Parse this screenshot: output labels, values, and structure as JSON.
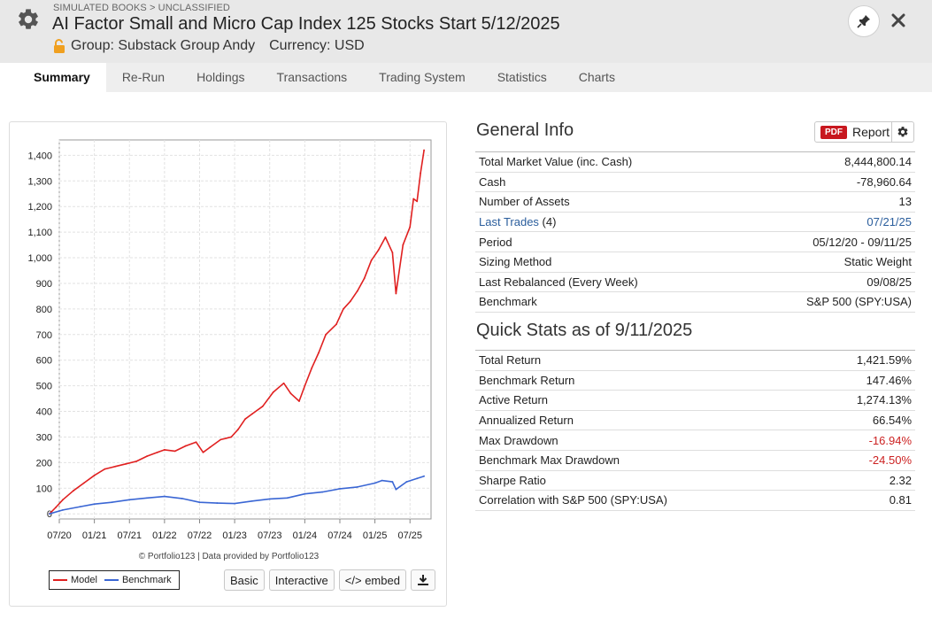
{
  "header": {
    "breadcrumb": "SIMULATED BOOKS > UNCLASSIFIED",
    "title": "AI Factor Small and Micro Cap Index 125 Stocks Start 5/12/2025",
    "group": "Group: Substack Group Andy",
    "currency": "Currency: USD"
  },
  "tabs": [
    {
      "label": "Summary",
      "active": true
    },
    {
      "label": "Re-Run"
    },
    {
      "label": "Holdings"
    },
    {
      "label": "Transactions"
    },
    {
      "label": "Trading System"
    },
    {
      "label": "Statistics"
    },
    {
      "label": "Charts"
    }
  ],
  "chart": {
    "credit": "© Portfolio123 | Data provided by Portfolio123",
    "legend": {
      "model": "Model",
      "benchmark": "Benchmark"
    },
    "buttons": {
      "basic": "Basic",
      "interactive": "Interactive",
      "embed": "</> embed"
    }
  },
  "chart_data": {
    "type": "line",
    "ylim": [
      -20,
      1460
    ],
    "yticks": [
      0,
      100,
      200,
      300,
      400,
      500,
      600,
      700,
      800,
      900,
      1000,
      1100,
      1200,
      1300,
      1400
    ],
    "ytick_labels": [
      "0",
      "100",
      "200",
      "300",
      "400",
      "500",
      "600",
      "700",
      "800",
      "900",
      "1,000",
      "1,100",
      "1,200",
      "1,300",
      "1,400"
    ],
    "xlim": [
      2020.5,
      2025.8
    ],
    "xticks": [
      2020.5,
      2021.0,
      2021.5,
      2022.0,
      2022.5,
      2023.0,
      2023.5,
      2024.0,
      2024.5,
      2025.0,
      2025.5
    ],
    "xtick_labels": [
      "07/20",
      "01/21",
      "07/21",
      "01/22",
      "07/22",
      "01/23",
      "07/23",
      "01/24",
      "07/24",
      "01/25",
      "07/25"
    ],
    "series": [
      {
        "name": "Model",
        "color": "#e02020",
        "x": [
          2020.36,
          2020.45,
          2020.55,
          2020.7,
          2020.85,
          2021.0,
          2021.15,
          2021.3,
          2021.45,
          2021.6,
          2021.75,
          2021.9,
          2022.0,
          2022.15,
          2022.3,
          2022.45,
          2022.55,
          2022.65,
          2022.8,
          2022.95,
          2023.05,
          2023.15,
          2023.25,
          2023.4,
          2023.55,
          2023.7,
          2023.8,
          2023.92,
          2024.0,
          2024.1,
          2024.2,
          2024.3,
          2024.45,
          2024.55,
          2024.65,
          2024.75,
          2024.85,
          2024.95,
          2025.05,
          2025.15,
          2025.25,
          2025.3,
          2025.4,
          2025.5,
          2025.55,
          2025.6,
          2025.65,
          2025.7
        ],
        "values": [
          0,
          25,
          55,
          90,
          120,
          150,
          175,
          185,
          195,
          205,
          225,
          240,
          250,
          245,
          265,
          280,
          240,
          260,
          290,
          300,
          330,
          370,
          390,
          420,
          475,
          510,
          470,
          440,
          500,
          570,
          630,
          700,
          740,
          800,
          830,
          870,
          920,
          990,
          1030,
          1080,
          1020,
          860,
          1050,
          1120,
          1230,
          1220,
          1330,
          1420
        ]
      },
      {
        "name": "Benchmark",
        "color": "#3a66d4",
        "x": [
          2020.36,
          2020.55,
          2020.8,
          2021.0,
          2021.25,
          2021.5,
          2021.75,
          2022.0,
          2022.25,
          2022.5,
          2022.75,
          2023.0,
          2023.25,
          2023.5,
          2023.75,
          2024.0,
          2024.25,
          2024.5,
          2024.75,
          2025.0,
          2025.1,
          2025.25,
          2025.3,
          2025.45,
          2025.6,
          2025.7
        ],
        "values": [
          0,
          15,
          28,
          38,
          45,
          55,
          62,
          68,
          60,
          45,
          42,
          40,
          50,
          58,
          62,
          78,
          85,
          98,
          105,
          120,
          130,
          125,
          95,
          125,
          138,
          147
        ]
      }
    ]
  },
  "general_info": {
    "title": "General Info",
    "report_label": "Report",
    "pdf_label": "PDF",
    "rows": [
      {
        "label": "Total Market Value (inc. Cash)",
        "value": "8,444,800.14"
      },
      {
        "label": "Cash",
        "value": "-78,960.64"
      },
      {
        "label": "Number of Assets",
        "value": "13"
      },
      {
        "label_link": "Last Trades",
        "label_suffix": " (4)",
        "value": "07/21/25",
        "value_link": true
      },
      {
        "label": "Period",
        "value": "05/12/20 - 09/11/25"
      },
      {
        "label": "Sizing Method",
        "value": "Static Weight"
      },
      {
        "label": "Last Rebalanced (Every Week)",
        "value": "09/08/25"
      },
      {
        "label": "Benchmark",
        "value": "S&P 500 (SPY:USA)"
      }
    ]
  },
  "quick_stats": {
    "title": "Quick Stats as of 9/11/2025",
    "rows": [
      {
        "label": "Total Return",
        "value": "1,421.59%"
      },
      {
        "label": "Benchmark Return",
        "value": "147.46%"
      },
      {
        "label": "Active Return",
        "value": "1,274.13%"
      },
      {
        "label": "Annualized Return",
        "value": "66.54%"
      },
      {
        "label": "Max Drawdown",
        "value": "-16.94%",
        "negative": true
      },
      {
        "label": "Benchmark Max Drawdown",
        "value": "-24.50%",
        "negative": true
      },
      {
        "label": "Sharpe Ratio",
        "value": "2.32"
      },
      {
        "label": "Correlation with S&P 500 (SPY:USA)",
        "value": "0.81"
      }
    ]
  }
}
